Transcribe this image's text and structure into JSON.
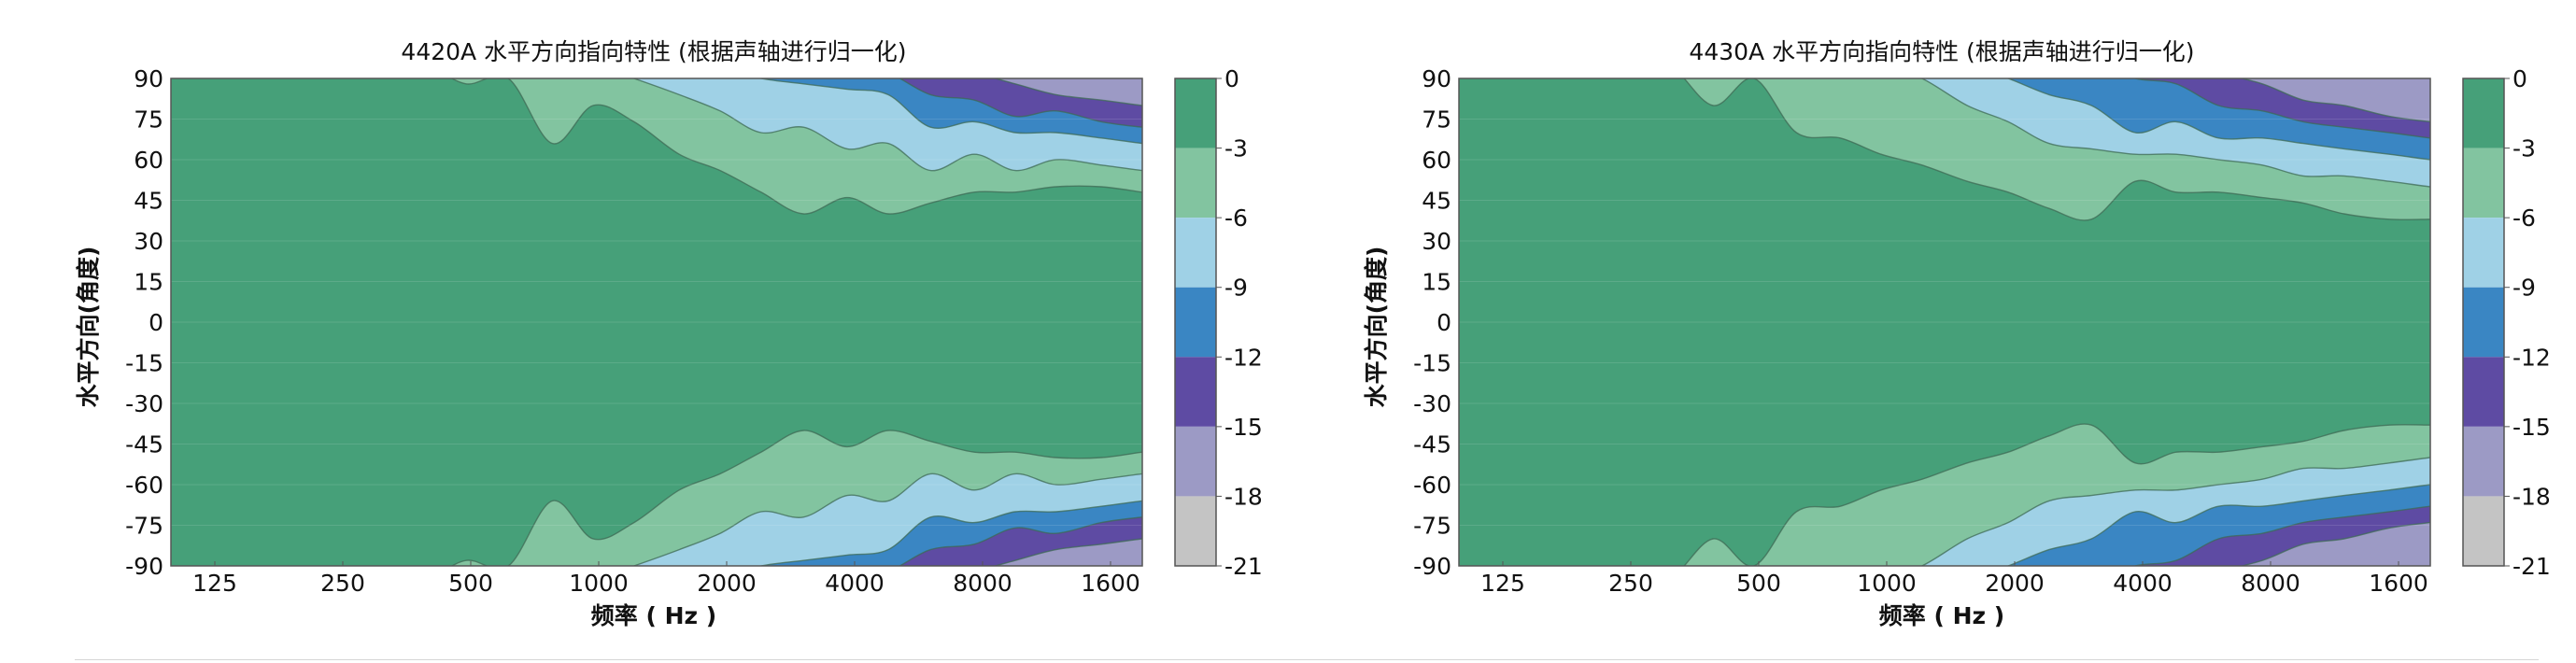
{
  "colors": {
    "level_0_-3": "#46a079",
    "level_-3_-6": "#82c4a0",
    "level_-6_-9": "#9fd1e6",
    "level_-9_-12": "#3a86c3",
    "level_-12_-15": "#5e4ba3",
    "level_-15_-18": "#9c9ac5",
    "level_-18_-21": "#c4c4c4",
    "contour_line": "#3d6a54"
  },
  "chart_data": [
    {
      "type": "heatmap",
      "subtype": "filled-contour",
      "title": "4420A 水平方向指向特性 (根据声轴进行归一化)",
      "xlabel": "频率 ( Hz )",
      "ylabel": "水平方向(角度)",
      "x_tick_labels": [
        "125",
        "250",
        "500",
        "1000",
        "2000",
        "4000",
        "8000",
        "1600"
      ],
      "y_tick_labels": [
        "90",
        "75",
        "60",
        "45",
        "30",
        "15",
        "0",
        "-15",
        "-30",
        "-45",
        "-60",
        "-75",
        "-90"
      ],
      "ylim": [
        -90,
        90
      ],
      "colorbar_ticks": [
        "0",
        "-3",
        "-6",
        "-9",
        "-12",
        "-15",
        "-18",
        "-21"
      ],
      "colorbar_range": [
        -21,
        0
      ],
      "contours": {
        "f": [
          100,
          125,
          160,
          200,
          250,
          315,
          400,
          500,
          630,
          800,
          1000,
          1250,
          1600,
          2000,
          2500,
          3150,
          4000,
          5000,
          6300,
          8000,
          10000,
          12500,
          16000,
          20000
        ],
        "level_-3_angle": [
          95,
          95,
          95,
          95,
          95,
          95,
          95,
          88,
          90,
          66,
          80,
          74,
          62,
          56,
          48,
          40,
          46,
          40,
          44,
          48,
          48,
          50,
          50,
          48
        ],
        "level_-6_angle": [
          95,
          95,
          95,
          95,
          95,
          95,
          95,
          95,
          95,
          95,
          95,
          90,
          84,
          78,
          70,
          72,
          64,
          66,
          56,
          62,
          56,
          60,
          58,
          56
        ],
        "level_-9_angle": [
          95,
          95,
          95,
          95,
          95,
          95,
          95,
          95,
          95,
          95,
          95,
          95,
          95,
          94,
          90,
          88,
          86,
          84,
          72,
          74,
          70,
          70,
          68,
          66
        ],
        "level_-12_angle": [
          95,
          95,
          95,
          95,
          95,
          95,
          95,
          95,
          95,
          95,
          95,
          95,
          95,
          95,
          95,
          95,
          94,
          92,
          84,
          82,
          76,
          78,
          74,
          72
        ],
        "level_-15_angle": [
          95,
          95,
          95,
          95,
          95,
          95,
          95,
          95,
          95,
          95,
          95,
          95,
          95,
          95,
          95,
          95,
          95,
          95,
          95,
          92,
          88,
          84,
          82,
          80
        ]
      }
    },
    {
      "type": "heatmap",
      "subtype": "filled-contour",
      "title": "4430A 水平方向指向特性 (根据声轴进行归一化)",
      "xlabel": "频率 ( Hz )",
      "ylabel": "水平方向(角度)",
      "x_tick_labels": [
        "125",
        "250",
        "500",
        "1000",
        "2000",
        "4000",
        "8000",
        "1600"
      ],
      "y_tick_labels": [
        "90",
        "75",
        "60",
        "45",
        "30",
        "15",
        "0",
        "-15",
        "-30",
        "-45",
        "-60",
        "-75",
        "-90"
      ],
      "ylim": [
        -90,
        90
      ],
      "colorbar_ticks": [
        "0",
        "-3",
        "-6",
        "-9",
        "-12",
        "-15",
        "-18",
        "-21"
      ],
      "colorbar_range": [
        -21,
        0
      ],
      "contours": {
        "f": [
          100,
          125,
          160,
          200,
          250,
          315,
          400,
          500,
          630,
          800,
          1000,
          1250,
          1600,
          2000,
          2500,
          3150,
          4000,
          5000,
          6300,
          8000,
          10000,
          12500,
          16000,
          20000
        ],
        "level_-3_angle": [
          95,
          95,
          95,
          95,
          95,
          95,
          80,
          90,
          70,
          68,
          62,
          58,
          52,
          48,
          42,
          38,
          52,
          48,
          48,
          46,
          44,
          40,
          38,
          38
        ],
        "level_-6_angle": [
          95,
          95,
          95,
          95,
          95,
          95,
          95,
          95,
          95,
          95,
          95,
          90,
          80,
          74,
          66,
          64,
          62,
          62,
          60,
          58,
          54,
          54,
          52,
          50
        ],
        "level_-9_angle": [
          95,
          95,
          95,
          95,
          95,
          95,
          95,
          95,
          95,
          95,
          95,
          95,
          95,
          90,
          84,
          80,
          70,
          74,
          68,
          68,
          66,
          64,
          62,
          60
        ],
        "level_-12_angle": [
          95,
          95,
          95,
          95,
          95,
          95,
          95,
          95,
          95,
          95,
          95,
          95,
          95,
          95,
          95,
          95,
          90,
          88,
          80,
          78,
          74,
          72,
          70,
          68
        ],
        "level_-15_angle": [
          95,
          95,
          95,
          95,
          95,
          95,
          95,
          95,
          95,
          95,
          95,
          95,
          95,
          95,
          95,
          95,
          95,
          95,
          92,
          88,
          82,
          80,
          76,
          74
        ]
      }
    }
  ]
}
